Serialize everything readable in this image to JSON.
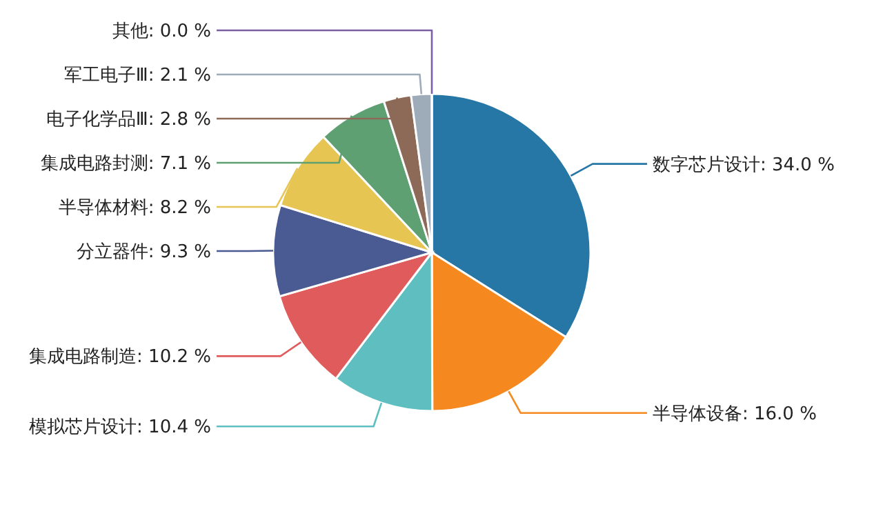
{
  "chart_data": {
    "type": "pie",
    "categories": [
      "数字芯片设计",
      "半导体设备",
      "模拟芯片设计",
      "集成电路制造",
      "分立器件",
      "半导体材料",
      "集成电路封测",
      "电子化学品Ⅲ",
      "军工电子Ⅲ",
      "其他"
    ],
    "values": [
      34.0,
      16.0,
      10.4,
      10.2,
      9.3,
      8.2,
      7.1,
      2.8,
      2.1,
      0.0
    ],
    "value_labels": [
      ": 34.0 %",
      ": 16.0 %",
      ": 10.4 %",
      ": 10.2 %",
      ": 9.3 %",
      ": 8.2 %",
      ": 7.1 %",
      ": 2.8 %",
      ": 2.1 %",
      ": 0.0 %"
    ],
    "colors": [
      "#2677a5",
      "#f5891f",
      "#5fbfc0",
      "#e05b5b",
      "#4a5a92",
      "#e6c553",
      "#5fa073",
      "#8c6a57",
      "#9eabb9",
      "#7b5fa3"
    ]
  }
}
